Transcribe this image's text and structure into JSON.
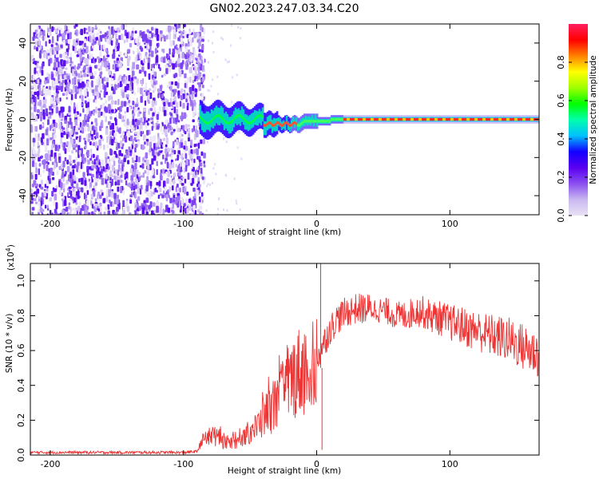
{
  "figure_title": "GN02.2023.247.03.34.C20",
  "chart_data": [
    {
      "type": "heatmap",
      "name": "spectrogram",
      "xlabel": "Height of straight line (km)",
      "ylabel": "Frequency (Hz)",
      "xlim": [
        -215,
        167
      ],
      "ylim": [
        -50,
        50
      ],
      "xticks": [
        -200,
        -100,
        0,
        100
      ],
      "xtick_labels": [
        "-200",
        "-100",
        "0",
        "100"
      ],
      "yticks": [
        -40,
        -20,
        0,
        20,
        40
      ],
      "ytick_labels": [
        "-40",
        "-20",
        "0",
        "20",
        "40"
      ],
      "noise_region_x": [
        -215,
        -85
      ],
      "signal_start_x": -88,
      "tone_frequency": 0,
      "colorbar": {
        "label": "Normalized spectral amplitude",
        "range": [
          0,
          1
        ],
        "ticks": [
          0.0,
          0.2,
          0.4,
          0.6,
          0.8
        ],
        "tick_labels": [
          "0.0",
          "0.2",
          "0.4",
          "0.6",
          "0.8"
        ],
        "colormap": [
          "#e8e2f6",
          "#c9b8f0",
          "#8a4fef",
          "#5a00f0",
          "#1200ff",
          "#00c0ff",
          "#00ffaa",
          "#00ff00",
          "#a0ff00",
          "#ffff00",
          "#ff8000",
          "#ff0000",
          "#ff2060"
        ]
      },
      "grid": false
    },
    {
      "type": "line",
      "name": "snr",
      "xlabel": "Height of straight line (km)",
      "ylabel": "SNR (10 * v/v)",
      "y_multiplier_label": "(x10",
      "y_multiplier_exp": "4",
      "y_multiplier_close": ")",
      "xlim": [
        -215,
        167
      ],
      "ylim": [
        0,
        1.1
      ],
      "xticks": [
        -200,
        -100,
        0,
        100
      ],
      "xtick_labels": [
        "-200",
        "-100",
        "0",
        "100"
      ],
      "yticks": [
        0.0,
        0.2,
        0.4,
        0.6,
        0.8,
        1.0
      ],
      "ytick_labels": [
        "0.0",
        "0.2",
        "0.4",
        "0.6",
        "0.8",
        "1.0"
      ],
      "color": "#ee3333",
      "grid": false,
      "x": [
        -215,
        -180,
        -140,
        -100,
        -90,
        -85,
        -80,
        -75,
        -70,
        -65,
        -60,
        -55,
        -50,
        -45,
        -40,
        -35,
        -30,
        -25,
        -20,
        -15,
        -10,
        -5,
        0,
        5,
        10,
        15,
        20,
        25,
        30,
        35,
        40,
        45,
        50,
        55,
        60,
        65,
        70,
        75,
        80,
        85,
        90,
        95,
        100,
        105,
        110,
        115,
        120,
        125,
        130,
        135,
        140,
        145,
        150,
        155,
        160,
        167
      ],
      "values": [
        0.015,
        0.015,
        0.015,
        0.015,
        0.02,
        0.08,
        0.12,
        0.1,
        0.08,
        0.07,
        0.08,
        0.1,
        0.13,
        0.16,
        0.22,
        0.26,
        0.3,
        0.36,
        0.42,
        0.48,
        0.48,
        0.48,
        0.55,
        0.64,
        0.72,
        0.78,
        0.81,
        0.83,
        0.84,
        0.84,
        0.84,
        0.835,
        0.83,
        0.82,
        0.8,
        0.8,
        0.81,
        0.83,
        0.82,
        0.8,
        0.79,
        0.78,
        0.76,
        0.75,
        0.74,
        0.72,
        0.72,
        0.7,
        0.69,
        0.68,
        0.67,
        0.66,
        0.64,
        0.62,
        0.6,
        0.58
      ],
      "annotations": [
        {
          "x": 3,
          "value": 1.1,
          "note": "spike"
        },
        {
          "x": 4,
          "value": 0.03,
          "note": "dip"
        }
      ]
    }
  ]
}
